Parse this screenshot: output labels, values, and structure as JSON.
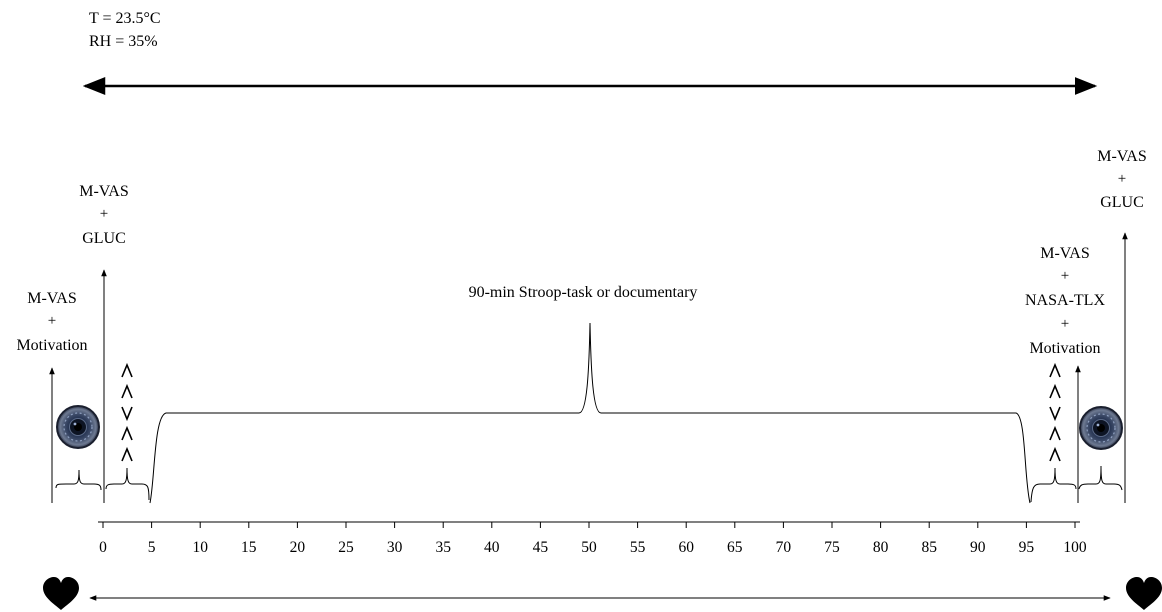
{
  "conditions": {
    "temperature": "T = 23.5°C",
    "humidity": "RH = 35%"
  },
  "task_label": "90-min Stroop-task or documentary",
  "axis": {
    "ticks": [
      "0",
      "5",
      "10",
      "15",
      "20",
      "25",
      "30",
      "35",
      "40",
      "45",
      "50",
      "55",
      "60",
      "65",
      "70",
      "75",
      "80",
      "85",
      "90",
      "95",
      "100"
    ]
  },
  "measures": {
    "pre_baseline": {
      "line1": "M-VAS",
      "plus1": "+",
      "line2": "Motivation"
    },
    "at_start": {
      "line1": "M-VAS",
      "plus1": "+",
      "line2": "GLUC"
    },
    "post_task": {
      "line1": "M-VAS",
      "plus1": "+",
      "line2": "NASA-TLX",
      "plus2": "+",
      "line3": "Motivation"
    },
    "final": {
      "line1": "M-VAS",
      "plus1": "+",
      "line2": "GLUC"
    }
  },
  "stroop_symbols_left": [
    "^",
    "^",
    "v",
    "^",
    "^"
  ],
  "stroop_symbols_right": [
    "^",
    "^",
    "v",
    "^",
    "^"
  ],
  "icons": {
    "camera": "camera-lens-icon",
    "heart": "heart-icon"
  }
}
